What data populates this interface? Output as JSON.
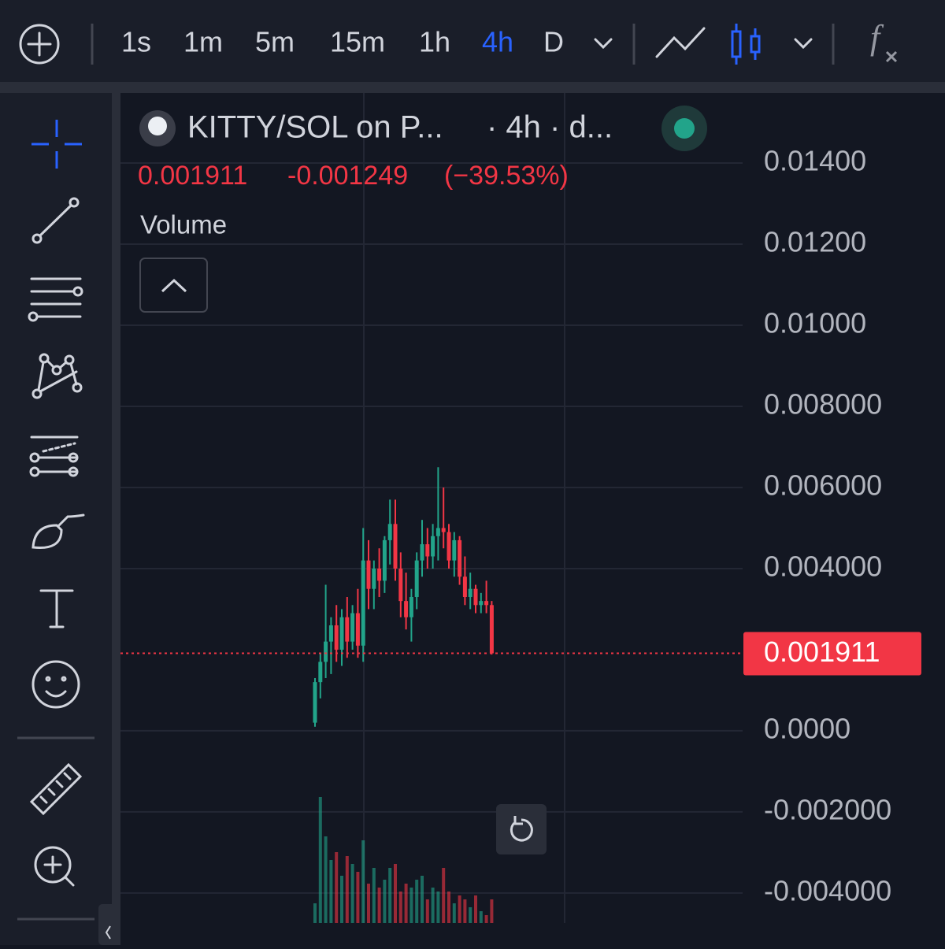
{
  "toolbar": {
    "timeframes": [
      "1s",
      "1m",
      "5m",
      "15m",
      "1h",
      "4h",
      "D"
    ],
    "active": "4h"
  },
  "chart_data": {
    "type": "candlestick",
    "title": "KITTY/SOL on P...",
    "subtitle": "· 4h · d...",
    "indicator": "Volume",
    "last_price": 0.001911,
    "change": -0.001249,
    "change_percent": {
      "value": -39.53,
      "label": "(−39.53%)"
    },
    "up_color": "#22a48a",
    "down_color": "#f23645",
    "ylim": [
      -0.00474,
      0.01569
    ],
    "yticks": [
      {
        "value": 0.014,
        "label": "0.01400"
      },
      {
        "value": 0.012,
        "label": "0.01200"
      },
      {
        "value": 0.01,
        "label": "0.01000"
      },
      {
        "value": 0.008,
        "label": "0.008000"
      },
      {
        "value": 0.006,
        "label": "0.006000"
      },
      {
        "value": 0.004,
        "label": "0.004000"
      },
      {
        "value": 0,
        "label": "0.0000"
      },
      {
        "value": -0.002,
        "label": "-0.002000"
      },
      {
        "value": -0.004,
        "label": "-0.004000"
      }
    ],
    "grid": true,
    "open": [
      0.0002,
      0.0012,
      0.0017,
      0.0022,
      0.0026,
      0.002,
      0.0028,
      0.0022,
      0.0029,
      0.0021,
      0.0042,
      0.0035,
      0.004,
      0.0037,
      0.0047,
      0.0051,
      0.004,
      0.0032,
      0.0028,
      0.0033,
      0.0042,
      0.0046,
      0.0043,
      0.0048,
      0.005,
      0.0049,
      0.0042,
      0.0047,
      0.0038,
      0.0033,
      0.0035,
      0.0031,
      0.0032,
      0.0031
    ],
    "high": [
      0.0013,
      0.0019,
      0.0036,
      0.0028,
      0.0031,
      0.003,
      0.0033,
      0.0031,
      0.0035,
      0.005,
      0.0047,
      0.0042,
      0.0045,
      0.0048,
      0.0057,
      0.0057,
      0.0044,
      0.0039,
      0.0035,
      0.0044,
      0.0052,
      0.005,
      0.0051,
      0.0065,
      0.006,
      0.0051,
      0.0049,
      0.0048,
      0.0043,
      0.0039,
      0.0036,
      0.0034,
      0.0037,
      0.0032
    ],
    "low": [
      0.0001,
      0.0008,
      0.0013,
      0.0014,
      0.0017,
      0.0016,
      0.0018,
      0.002,
      0.0018,
      0.0017,
      0.003,
      0.003,
      0.0033,
      0.0034,
      0.0041,
      0.0037,
      0.0028,
      0.0025,
      0.0022,
      0.003,
      0.0038,
      0.004,
      0.004,
      0.0042,
      0.0045,
      0.004,
      0.0038,
      0.0036,
      0.0031,
      0.003,
      0.0029,
      0.0029,
      0.0029,
      0.00188
    ],
    "close": [
      0.0012,
      0.0017,
      0.0022,
      0.0026,
      0.002,
      0.0028,
      0.0022,
      0.0029,
      0.0021,
      0.0042,
      0.0035,
      0.004,
      0.0037,
      0.0047,
      0.0051,
      0.004,
      0.0032,
      0.0028,
      0.0033,
      0.0042,
      0.0046,
      0.0043,
      0.0048,
      0.005,
      0.0049,
      0.0042,
      0.0047,
      0.0038,
      0.0033,
      0.0035,
      0.0031,
      0.0032,
      0.0031,
      0.001911
    ],
    "volume": [
      25,
      160,
      110,
      80,
      90,
      60,
      85,
      75,
      65,
      105,
      50,
      70,
      45,
      55,
      70,
      75,
      40,
      50,
      45,
      55,
      60,
      30,
      45,
      40,
      70,
      40,
      25,
      35,
      30,
      20,
      35,
      15,
      10,
      30
    ]
  }
}
